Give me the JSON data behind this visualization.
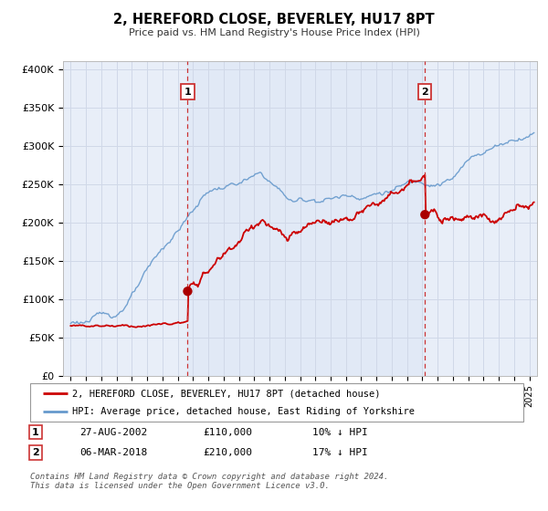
{
  "title": "2, HEREFORD CLOSE, BEVERLEY, HU17 8PT",
  "subtitle": "Price paid vs. HM Land Registry's House Price Index (HPI)",
  "background_color": "#ffffff",
  "plot_bg_color": "#e8eef8",
  "plot_bg_shaded": "#dce6f5",
  "grid_color": "#d0d8e8",
  "ylim": [
    0,
    410000
  ],
  "xlim_start": 1994.5,
  "xlim_end": 2025.5,
  "sale1_date": 2002.65,
  "sale1_price": 110000,
  "sale1_label": "1",
  "sale1_date_str": "27-AUG-2002",
  "sale1_pct": "10%",
  "sale2_date": 2018.17,
  "sale2_price": 210000,
  "sale2_label": "2",
  "sale2_date_str": "06-MAR-2018",
  "sale2_pct": "17%",
  "red_line_color": "#cc0000",
  "blue_line_color": "#6699cc",
  "dashed_line_color": "#cc3333",
  "marker_color": "#aa0000",
  "legend1_label": "2, HEREFORD CLOSE, BEVERLEY, HU17 8PT (detached house)",
  "legend2_label": "HPI: Average price, detached house, East Riding of Yorkshire",
  "footnote": "Contains HM Land Registry data © Crown copyright and database right 2024.\nThis data is licensed under the Open Government Licence v3.0.",
  "ytick_labels": [
    "£0",
    "£50K",
    "£100K",
    "£150K",
    "£200K",
    "£250K",
    "£300K",
    "£350K",
    "£400K"
  ],
  "ytick_values": [
    0,
    50000,
    100000,
    150000,
    200000,
    250000,
    300000,
    350000,
    400000
  ],
  "hpi_seed": 42,
  "prop_seed": 123
}
